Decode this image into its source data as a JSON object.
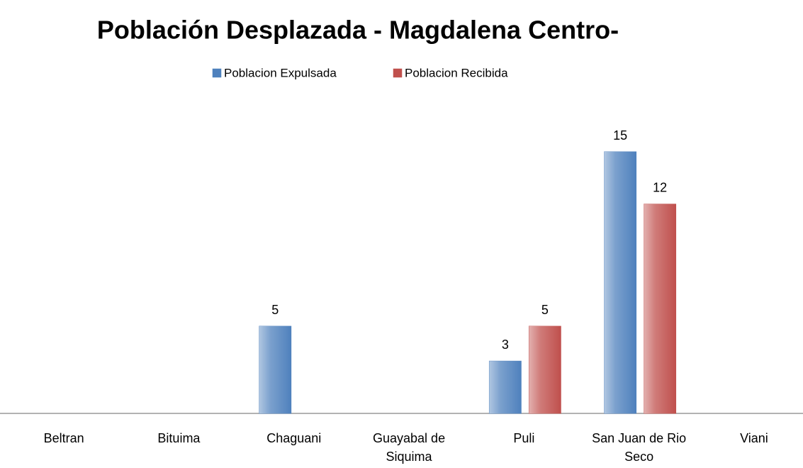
{
  "chart_data": {
    "type": "bar",
    "title": "Población Desplazada - Magdalena Centro-",
    "categories": [
      "Beltran",
      "Bituima",
      "Chaguani",
      "Guayabal de Siquima",
      "Puli",
      "San Juan de Rio Seco",
      "Viani"
    ],
    "series": [
      {
        "name": "Poblacion Expulsada",
        "color": "#4f81bd",
        "values": [
          null,
          null,
          5,
          null,
          3,
          15,
          null
        ]
      },
      {
        "name": "Poblacion Recibida",
        "color": "#c0504d",
        "values": [
          null,
          null,
          null,
          null,
          5,
          12,
          null
        ]
      }
    ],
    "legend": "top",
    "grid": false
  }
}
